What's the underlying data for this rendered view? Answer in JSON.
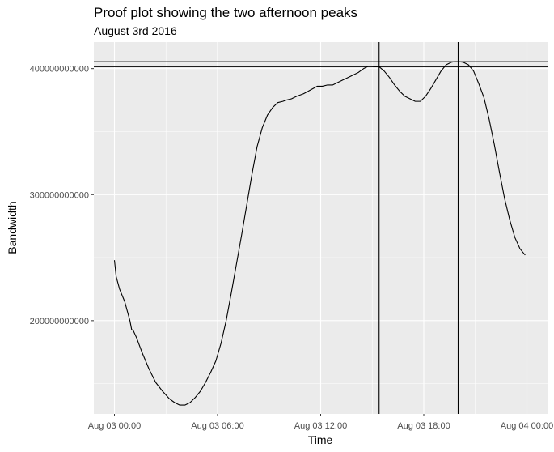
{
  "chart_data": {
    "type": "line",
    "title": "Proof plot showing the two afternoon peaks",
    "subtitle": "August 3rd 2016",
    "xlabel": "Time",
    "ylabel": "Bandwidth",
    "x_unit": "hours",
    "x_ticks": [
      {
        "value": 0,
        "label": "Aug 03 00:00"
      },
      {
        "value": 6,
        "label": "Aug 03 06:00"
      },
      {
        "value": 12,
        "label": "Aug 03 12:00"
      },
      {
        "value": 18,
        "label": "Aug 03 18:00"
      },
      {
        "value": 24,
        "label": "Aug 04 00:00"
      }
    ],
    "y_ticks": [
      {
        "value": 200000000000,
        "label": "200000000000"
      },
      {
        "value": 300000000000,
        "label": "300000000000"
      },
      {
        "value": 400000000000,
        "label": "400000000000"
      }
    ],
    "xlim": [
      -1.2,
      25.2
    ],
    "ylim": [
      126000000000,
      421000000000
    ],
    "grid": true,
    "background": "#ebebeb",
    "line_color": "#000000",
    "vlines": [
      15.4,
      20.0
    ],
    "hlines": [
      401500000000,
      405500000000
    ],
    "x": [
      0,
      0.1,
      0.3,
      0.6,
      0.9,
      1.0,
      1.1,
      1.3,
      1.6,
      2.0,
      2.4,
      2.8,
      3.2,
      3.5,
      3.8,
      4.1,
      4.4,
      4.7,
      5.0,
      5.3,
      5.6,
      5.9,
      6.2,
      6.5,
      6.8,
      7.1,
      7.4,
      7.7,
      8.0,
      8.3,
      8.6,
      8.9,
      9.2,
      9.5,
      9.8,
      10.0,
      10.3,
      10.6,
      11.0,
      11.4,
      11.8,
      12.1,
      12.4,
      12.7,
      13.0,
      13.3,
      13.6,
      13.9,
      14.2,
      14.5,
      14.8,
      15.1,
      15.4,
      15.7,
      16.0,
      16.3,
      16.6,
      16.9,
      17.2,
      17.5,
      17.8,
      18.1,
      18.4,
      18.7,
      19.0,
      19.3,
      19.6,
      19.8,
      20.0,
      20.3,
      20.6,
      20.9,
      21.2,
      21.5,
      21.8,
      22.1,
      22.4,
      22.7,
      23.0,
      23.3,
      23.6,
      23.9
    ],
    "y": [
      248000000000,
      235000000000,
      225000000000,
      215000000000,
      200000000000,
      193000000000,
      192000000000,
      186000000000,
      175000000000,
      162000000000,
      151000000000,
      144000000000,
      138000000000,
      135000000000,
      133000000000,
      133000000000,
      135000000000,
      139000000000,
      144000000000,
      151000000000,
      159000000000,
      168000000000,
      182000000000,
      200000000000,
      222000000000,
      245000000000,
      268000000000,
      292000000000,
      316000000000,
      338000000000,
      353000000000,
      363000000000,
      369000000000,
      373000000000,
      374000000000,
      375000000000,
      376000000000,
      378000000000,
      380000000000,
      383000000000,
      386000000000,
      386000000000,
      387000000000,
      387000000000,
      389000000000,
      391000000000,
      393000000000,
      395000000000,
      397000000000,
      400000000000,
      402000000000,
      401500000000,
      401500000000,
      398000000000,
      393000000000,
      387000000000,
      382000000000,
      378000000000,
      376000000000,
      374000000000,
      374000000000,
      378000000000,
      384000000000,
      391000000000,
      398000000000,
      403000000000,
      405000000000,
      405500000000,
      405500000000,
      405000000000,
      403000000000,
      398000000000,
      388000000000,
      377000000000,
      360000000000,
      340000000000,
      318000000000,
      297000000000,
      280000000000,
      266000000000,
      257000000000,
      252000000000
    ]
  }
}
